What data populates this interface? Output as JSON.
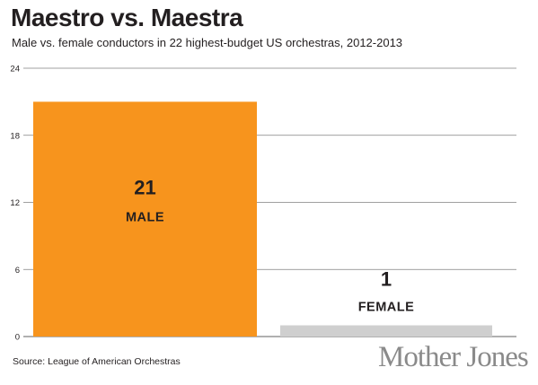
{
  "header": {
    "title": "Maestro vs. Maestra",
    "subtitle": "Male vs. female conductors in 22 highest-budget US orchestras, 2012-2013"
  },
  "footer": {
    "source": "Source: League of American Orchestras",
    "logo_text": "Mother Jones"
  },
  "colors": {
    "male": "#f7941d",
    "female": "#cfcfcf",
    "grid": "#808080",
    "label": "#231f20"
  },
  "chart_data": {
    "type": "bar",
    "title": "Maestro vs. Maestra",
    "subtitle": "Male vs. female conductors in 22 highest-budget US orchestras, 2012-2013",
    "categories": [
      "MALE",
      "FEMALE"
    ],
    "values": [
      21,
      1
    ],
    "ylim": [
      0,
      24
    ],
    "yticks": [
      0,
      6,
      12,
      18,
      24
    ],
    "grid": true,
    "xlabel": "",
    "ylabel": ""
  }
}
